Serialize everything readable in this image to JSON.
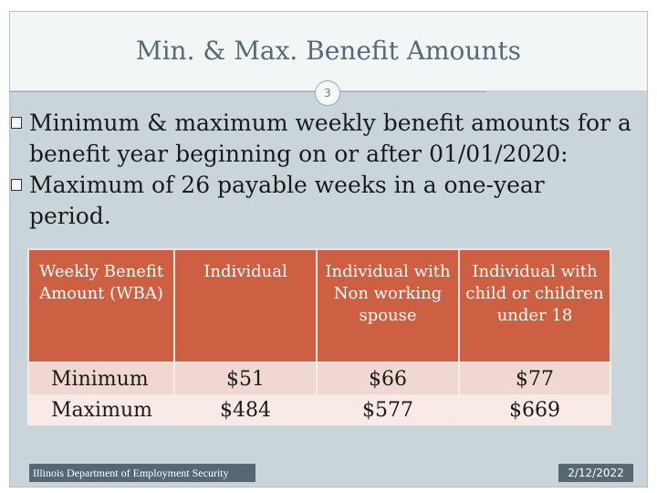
{
  "slide": {
    "title": "Min. & Max. Benefit Amounts",
    "slide_number": "3",
    "colors": {
      "title_text": "#566b78",
      "slide_background": "#c9d5db",
      "table_header": "#cd5f42",
      "table_row": "#f0d7d2",
      "footer_bar": "#556874"
    }
  },
  "bullets": [
    "Minimum & maximum weekly benefit amounts for a benefit year beginning on or after 01/01/2020:",
    "Maximum of 26 payable weeks in a one-year period."
  ],
  "table": {
    "headers": [
      "Weekly Benefit Amount (WBA)",
      "Individual",
      "Individual with Non working spouse",
      "Individual with child or children under 18"
    ],
    "rows": [
      [
        "Minimum",
        "$51",
        "$66",
        "$77"
      ],
      [
        "Maximum",
        "$484",
        "$577",
        "$669"
      ]
    ]
  },
  "footer": {
    "organization": "Illinois Department of Employment Security",
    "date": "2/12/2022"
  }
}
